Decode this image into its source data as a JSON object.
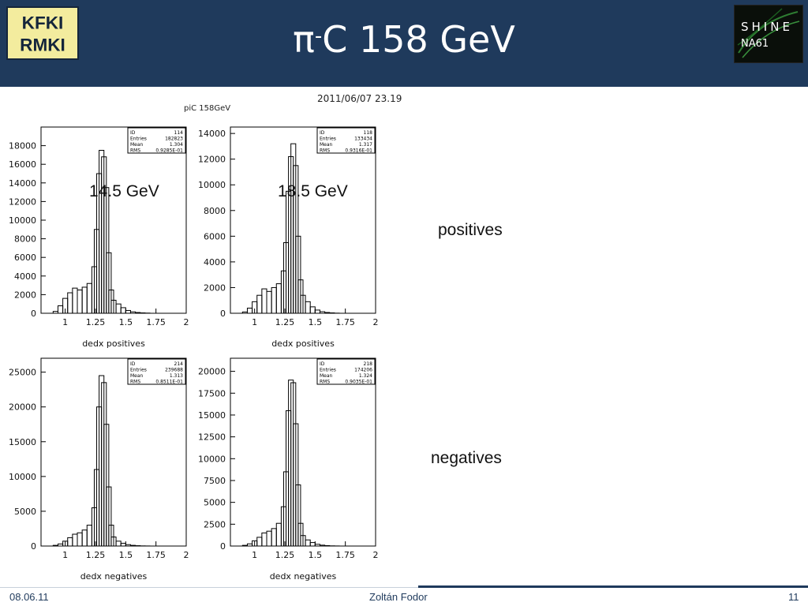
{
  "slide": {
    "title_main": "π",
    "title_sup": "-",
    "title_rest": "C 158 GeV",
    "logo_left_text": [
      "KFKI",
      "RMKI"
    ],
    "logo_right_text": [
      "SHINE",
      "NA61"
    ],
    "footer": {
      "date": "08.06.11",
      "author": "Zoltán Fodor",
      "page": "11"
    },
    "labels": {
      "positives": "positives",
      "negatives": "negatives",
      "e1": "14.5 GeV",
      "e2": "18.5 GeV"
    }
  },
  "figure": {
    "title": "piC 158GeV",
    "timestamp": "2011/06/07   23.19"
  },
  "chart_data": [
    {
      "type": "bar",
      "panel": "top-left",
      "xlabel": "dedx positives",
      "xlim": [
        0.8,
        2.0
      ],
      "ylim": [
        0,
        20000
      ],
      "xticks": [
        1,
        1.25,
        1.5,
        1.75,
        2
      ],
      "xtick_labels": [
        "1",
        "1.25",
        "1.5",
        "1.75",
        "2"
      ],
      "yticks": [
        0,
        2000,
        4000,
        6000,
        8000,
        10000,
        12000,
        14000,
        16000,
        18000
      ],
      "stats": {
        "ID": "114",
        "Entries": "182823",
        "Mean": "1.304",
        "RMS": "0.9285E-01"
      },
      "x": [
        0.92,
        0.96,
        1.0,
        1.04,
        1.08,
        1.12,
        1.16,
        1.2,
        1.24,
        1.26,
        1.28,
        1.3,
        1.32,
        1.34,
        1.36,
        1.38,
        1.4,
        1.44,
        1.48,
        1.52,
        1.56,
        1.6,
        1.64,
        1.68
      ],
      "values": [
        200,
        800,
        1600,
        2200,
        2700,
        2500,
        2800,
        3200,
        5000,
        9000,
        15000,
        17500,
        16800,
        13500,
        6500,
        2500,
        1400,
        1000,
        600,
        300,
        150,
        80,
        40,
        20
      ]
    },
    {
      "type": "bar",
      "panel": "top-right",
      "xlabel": "dedx positives",
      "xlim": [
        0.8,
        2.0
      ],
      "ylim": [
        0,
        14500
      ],
      "xticks": [
        1,
        1.25,
        1.5,
        1.75,
        2
      ],
      "xtick_labels": [
        "1",
        "1.25",
        "1.5",
        "1.75",
        "2"
      ],
      "yticks": [
        0,
        2000,
        4000,
        6000,
        8000,
        10000,
        12000,
        14000
      ],
      "stats": {
        "ID": "118",
        "Entries": "133434",
        "Mean": "1.317",
        "RMS": "0.9316E-01"
      },
      "x": [
        0.92,
        0.96,
        1.0,
        1.04,
        1.08,
        1.12,
        1.16,
        1.2,
        1.24,
        1.26,
        1.28,
        1.3,
        1.32,
        1.34,
        1.36,
        1.38,
        1.4,
        1.44,
        1.48,
        1.52,
        1.56,
        1.6,
        1.64,
        1.68
      ],
      "values": [
        100,
        400,
        900,
        1400,
        1900,
        1700,
        2000,
        2300,
        3300,
        5500,
        9500,
        12200,
        13200,
        11500,
        6000,
        2600,
        1400,
        900,
        500,
        250,
        120,
        60,
        30,
        10
      ]
    },
    {
      "type": "bar",
      "panel": "bottom-left",
      "xlabel": "dedx negatives",
      "xlim": [
        0.8,
        2.0
      ],
      "ylim": [
        0,
        27000
      ],
      "xticks": [
        1,
        1.25,
        1.5,
        1.75,
        2
      ],
      "xtick_labels": [
        "1",
        "1.25",
        "1.5",
        "1.75",
        "2"
      ],
      "yticks": [
        0,
        5000,
        10000,
        15000,
        20000,
        25000
      ],
      "stats": {
        "ID": "214",
        "Entries": "239688",
        "Mean": "1.313",
        "RMS": "0.8511E-01"
      },
      "x": [
        0.92,
        0.96,
        1.0,
        1.04,
        1.08,
        1.12,
        1.16,
        1.2,
        1.24,
        1.26,
        1.28,
        1.3,
        1.32,
        1.34,
        1.36,
        1.38,
        1.4,
        1.44,
        1.48,
        1.52,
        1.56,
        1.6,
        1.64,
        1.68
      ],
      "values": [
        100,
        300,
        700,
        1200,
        1700,
        1900,
        2300,
        3000,
        5500,
        11000,
        20000,
        24500,
        23500,
        17500,
        8500,
        3000,
        1300,
        700,
        400,
        200,
        100,
        50,
        20,
        10
      ]
    },
    {
      "type": "bar",
      "panel": "bottom-right",
      "xlabel": "dedx negatives",
      "xlim": [
        0.8,
        2.0
      ],
      "ylim": [
        0,
        21500
      ],
      "xticks": [
        1,
        1.25,
        1.5,
        1.75,
        2
      ],
      "xtick_labels": [
        "1",
        "1.25",
        "1.5",
        "1.75",
        "2"
      ],
      "yticks": [
        0,
        2500,
        5000,
        7500,
        10000,
        12500,
        15000,
        17500,
        20000
      ],
      "stats": {
        "ID": "218",
        "Entries": "174206",
        "Mean": "1.324",
        "RMS": "0.9035E-01"
      },
      "x": [
        0.92,
        0.96,
        1.0,
        1.04,
        1.08,
        1.12,
        1.16,
        1.2,
        1.24,
        1.26,
        1.28,
        1.3,
        1.32,
        1.34,
        1.36,
        1.38,
        1.4,
        1.44,
        1.48,
        1.52,
        1.56,
        1.6,
        1.64,
        1.68
      ],
      "values": [
        80,
        250,
        600,
        1000,
        1500,
        1700,
        2000,
        2600,
        4500,
        8500,
        15500,
        19000,
        18700,
        14000,
        7000,
        2600,
        1200,
        700,
        400,
        200,
        100,
        50,
        20,
        10
      ]
    }
  ]
}
